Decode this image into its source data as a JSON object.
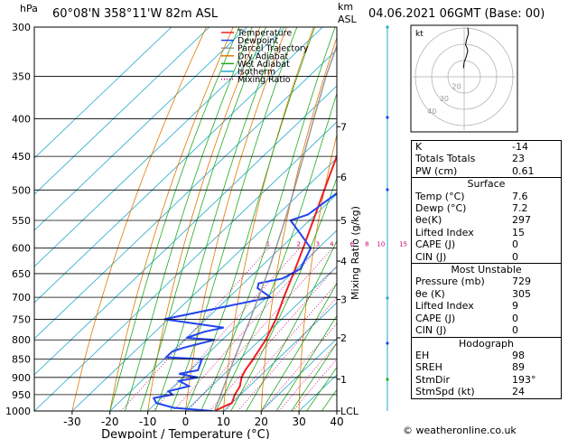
{
  "header": {
    "hpa_label": "hPa",
    "location": "60°08'N  358°11'W  82m  ASL",
    "km_label": "km",
    "asl_label": "ASL",
    "datetime": "04.06.2021  06GMT  (Base: 00)"
  },
  "chart_data": {
    "type": "skew-t log-p",
    "xlabel": "Dewpoint / Temperature (°C)",
    "ylabel": "hPa",
    "right_axis_label": "Mixing Ratio (g/kg)",
    "x_ticks": [
      -30,
      -20,
      -10,
      0,
      10,
      20,
      30,
      40
    ],
    "pressure_levels": [
      300,
      350,
      400,
      450,
      500,
      550,
      600,
      650,
      700,
      750,
      800,
      850,
      900,
      950,
      1000
    ],
    "xlim": [
      -40,
      40
    ],
    "ylim_hpa": [
      1000,
      300
    ],
    "km_ticks": [
      {
        "label": "7",
        "p": 410
      },
      {
        "label": "6",
        "p": 480
      },
      {
        "label": "5",
        "p": 550
      },
      {
        "label": "4",
        "p": 625
      },
      {
        "label": "3",
        "p": 705
      },
      {
        "label": "2",
        "p": 795
      },
      {
        "label": "1",
        "p": 905
      },
      {
        "label": "LCL",
        "p": 1000
      }
    ],
    "mixing_ratio_labels": [
      "1",
      "2",
      "3",
      "4",
      "6",
      "8",
      "10",
      "15",
      "20",
      "25"
    ],
    "legend": [
      "Temperature",
      "Dewpoint",
      "Parcel Trajectory",
      "Dry Adiabat",
      "Wet Adiabat",
      "Isotherm",
      "Mixing Ratio"
    ],
    "legend_colors": [
      "#ee2222",
      "#2244ee",
      "#999999",
      "#e07800",
      "#22aa22",
      "#22aacc",
      "#cc0077"
    ],
    "legend_styles": [
      "solid",
      "solid",
      "solid",
      "solid",
      "solid",
      "solid",
      "dotted"
    ],
    "series": [
      {
        "name": "Temperature",
        "color": "#ee2222",
        "p": [
          1000,
          975,
          950,
          925,
          900,
          880,
          850,
          800,
          750,
          700,
          650,
          600,
          550,
          500,
          450,
          400,
          350,
          300
        ],
        "t": [
          7.6,
          10,
          8.5,
          7.5,
          5.5,
          4.5,
          3.5,
          1.5,
          -1.5,
          -5.5,
          -9.5,
          -14,
          -19,
          -24.5,
          -30.5,
          -37.5,
          -45,
          -53
        ]
      },
      {
        "name": "Dewpoint",
        "color": "#2244ee",
        "p": [
          1000,
          990,
          975,
          960,
          950,
          940,
          925,
          910,
          900,
          890,
          880,
          850,
          845,
          830,
          820,
          800,
          795,
          780,
          770,
          750,
          700,
          680,
          670,
          660,
          640,
          600,
          550,
          540,
          500,
          480,
          450,
          400,
          350,
          300
        ],
        "t": [
          7.2,
          -4,
          -10,
          -12,
          -8,
          -10,
          -6,
          -10,
          -6,
          -12,
          -8,
          -10,
          -20,
          -20,
          -18,
          -12,
          -20,
          -17,
          -13,
          -31,
          -9,
          -15,
          -16,
          -11,
          -9,
          -12,
          -25,
          -22,
          -20,
          -21,
          -22,
          -27,
          -36,
          -47
        ]
      },
      {
        "name": "Parcel Trajectory",
        "color": "#999999",
        "p": [
          1000,
          950,
          900,
          850,
          800,
          750,
          700,
          650,
          600,
          550,
          500,
          450,
          400,
          350,
          300
        ],
        "t": [
          7.6,
          4.8,
          1.7,
          -1.5,
          -4.8,
          -8.3,
          -12.2,
          -16.4,
          -21.2,
          -26.5,
          -32.5,
          -39.3,
          -47,
          -55.5,
          -64.5
        ]
      }
    ]
  },
  "hodograph": {
    "label": "kt",
    "ring_labels": [
      "20",
      "30",
      "40"
    ],
    "u": [
      -0.5,
      0,
      1.5,
      2.5,
      2,
      1,
      1.5,
      3,
      2.5
    ],
    "v": [
      6,
      10,
      14,
      18,
      20,
      22,
      25,
      30,
      34
    ]
  },
  "indices": {
    "top": [
      {
        "label": "K",
        "value": "-14"
      },
      {
        "label": "Totals Totals",
        "value": "23"
      },
      {
        "label": "PW (cm)",
        "value": "0.61"
      }
    ],
    "surface": {
      "title": "Surface",
      "rows": [
        {
          "label": "Temp (°C)",
          "value": "7.6"
        },
        {
          "label": "Dewp (°C)",
          "value": "7.2"
        },
        {
          "label": "θe(K)",
          "value": "297"
        },
        {
          "label": "Lifted Index",
          "value": "15"
        },
        {
          "label": "CAPE (J)",
          "value": "0"
        },
        {
          "label": "CIN (J)",
          "value": "0"
        }
      ]
    },
    "most_unstable": {
      "title": "Most Unstable",
      "rows": [
        {
          "label": "Pressure (mb)",
          "value": "729"
        },
        {
          "label": "θe (K)",
          "value": "305"
        },
        {
          "label": "Lifted Index",
          "value": "9"
        },
        {
          "label": "CAPE (J)",
          "value": "0"
        },
        {
          "label": "CIN (J)",
          "value": "0"
        }
      ]
    },
    "hodograph_indices": {
      "title": "Hodograph",
      "rows": [
        {
          "label": "EH",
          "value": "98"
        },
        {
          "label": "SREH",
          "value": "89"
        },
        {
          "label": "StmDir",
          "value": "193°"
        },
        {
          "label": "StmSpd (kt)",
          "value": "24"
        }
      ]
    }
  },
  "copyright": "© weatheronline.co.uk"
}
